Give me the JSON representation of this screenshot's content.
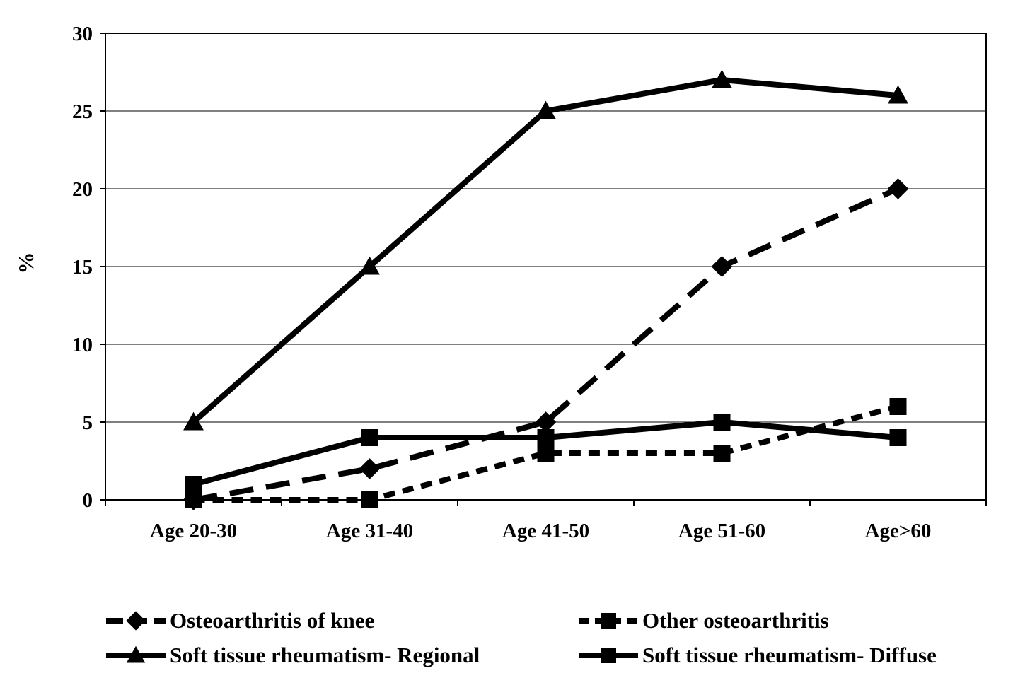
{
  "chart_data": {
    "type": "line",
    "title": "",
    "xlabel": "",
    "ylabel": "%",
    "categories": [
      "Age 20-30",
      "Age 31-40",
      "Age 41-50",
      "Age 51-60",
      "Age>60"
    ],
    "ylim": [
      0,
      30
    ],
    "yticks": [
      0,
      5,
      10,
      15,
      20,
      25,
      30
    ],
    "grid": "horizontal",
    "legend_position": "bottom",
    "series": [
      {
        "name": "Osteoarthritis of knee",
        "values": [
          0,
          2,
          5,
          15,
          20
        ],
        "line_style": "long-dash",
        "marker": "diamond",
        "color": "#000000"
      },
      {
        "name": "Other osteoarthritis",
        "values": [
          0,
          0,
          3,
          3,
          6
        ],
        "line_style": "short-dash",
        "marker": "square",
        "color": "#000000"
      },
      {
        "name": "Soft tissue rheumatism- Regional",
        "values": [
          5,
          15,
          25,
          27,
          26
        ],
        "line_style": "solid",
        "marker": "triangle",
        "color": "#000000"
      },
      {
        "name": "Soft tissue rheumatism-  Diffuse",
        "values": [
          1,
          4,
          4,
          5,
          4
        ],
        "line_style": "solid",
        "marker": "square",
        "color": "#000000"
      }
    ]
  }
}
